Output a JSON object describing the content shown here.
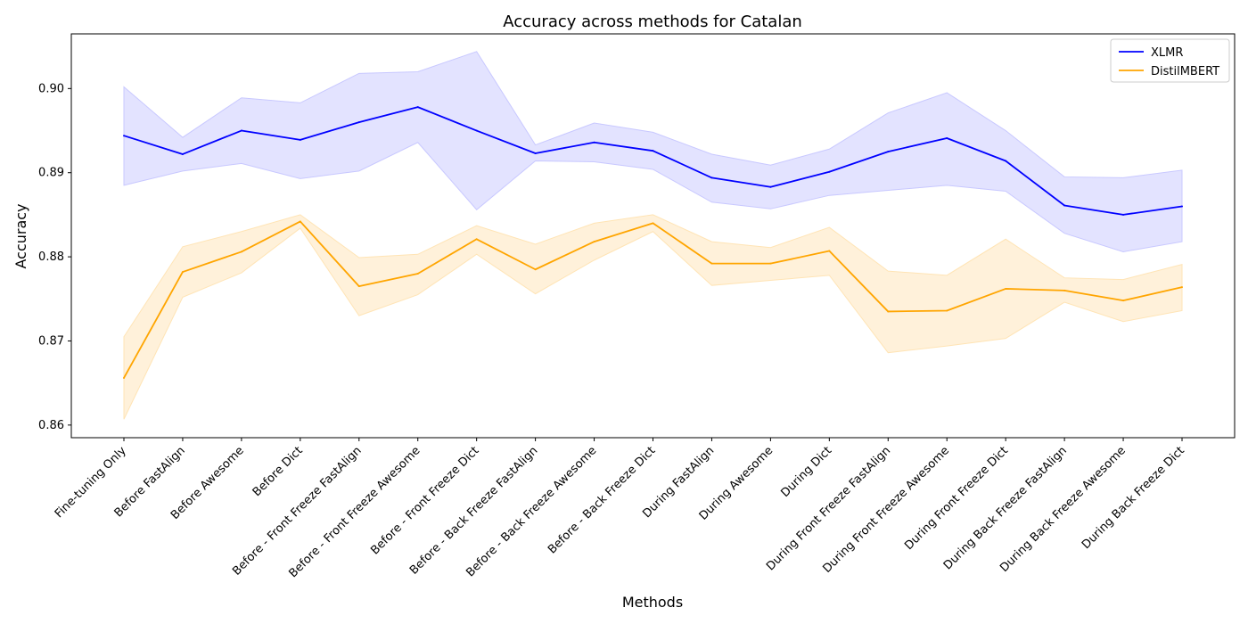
{
  "chart_data": {
    "type": "line",
    "title": "Accuracy across methods for Catalan",
    "xlabel": "Methods",
    "ylabel": "Accuracy",
    "ylim": [
      0.8585,
      0.9065
    ],
    "yticks": [
      0.86,
      0.87,
      0.88,
      0.89,
      0.9
    ],
    "ytick_labels": [
      "0.86",
      "0.87",
      "0.88",
      "0.89",
      "0.90"
    ],
    "legend_position": "top-right",
    "categories": [
      "Fine-tuning Only",
      "Before FastAlign",
      "Before Awesome",
      "Before Dict",
      "Before - Front Freeze FastAlign",
      "Before - Front Freeze Awesome",
      "Before - Front Freeze Dict",
      "Before - Back Freeze FastAlign",
      "Before - Back Freeze Awesome",
      "Before - Back Freeze Dict",
      "During FastAlign",
      "During Awesome",
      "During Dict",
      "During Front Freeze FastAlign",
      "During Front Freeze Awesome",
      "During Front Freeze Dict",
      "During Back Freeze FastAlign",
      "During Back Freeze Awesome",
      "During Back Freeze Dict"
    ],
    "series": [
      {
        "name": "XLMR",
        "color": "#0000ff",
        "band_color": "#c8c8ff",
        "values": [
          0.8944,
          0.8922,
          0.895,
          0.8939,
          0.896,
          0.8978,
          0.895,
          0.8923,
          0.8936,
          0.8926,
          0.8894,
          0.8883,
          0.8901,
          0.8925,
          0.8941,
          0.8914,
          0.8861,
          0.885,
          0.886
        ],
        "lower": [
          0.8885,
          0.8902,
          0.8911,
          0.8893,
          0.8902,
          0.8936,
          0.8856,
          0.8914,
          0.8913,
          0.8904,
          0.8865,
          0.8857,
          0.8873,
          0.8879,
          0.8885,
          0.8878,
          0.8828,
          0.8806,
          0.8818
        ],
        "upper": [
          0.9002,
          0.8942,
          0.8989,
          0.8983,
          0.9018,
          0.902,
          0.9044,
          0.8933,
          0.8959,
          0.8948,
          0.8922,
          0.8909,
          0.8928,
          0.8971,
          0.8995,
          0.895,
          0.8895,
          0.8894,
          0.8903
        ]
      },
      {
        "name": "DistilMBERT",
        "color": "#ffa500",
        "band_color": "#ffe4b5",
        "values": [
          0.8656,
          0.8782,
          0.8806,
          0.8842,
          0.8765,
          0.878,
          0.8821,
          0.8785,
          0.8818,
          0.884,
          0.8792,
          0.8792,
          0.8807,
          0.8735,
          0.8736,
          0.8762,
          0.876,
          0.8748,
          0.8764
        ],
        "lower": [
          0.8607,
          0.8752,
          0.8781,
          0.8834,
          0.873,
          0.8755,
          0.8803,
          0.8756,
          0.8796,
          0.883,
          0.8766,
          0.8772,
          0.8778,
          0.8686,
          0.8694,
          0.8703,
          0.8746,
          0.8723,
          0.8736
        ],
        "upper": [
          0.8705,
          0.8812,
          0.883,
          0.885,
          0.8799,
          0.8803,
          0.8837,
          0.8815,
          0.884,
          0.885,
          0.8818,
          0.8811,
          0.8835,
          0.8783,
          0.8778,
          0.8821,
          0.8775,
          0.8773,
          0.8791
        ]
      }
    ]
  }
}
